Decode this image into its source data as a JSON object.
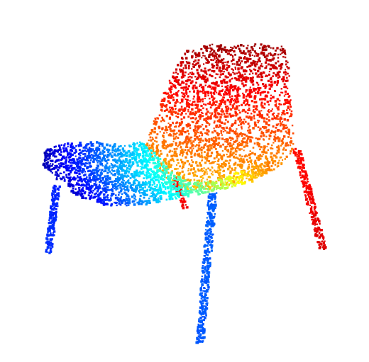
{
  "scene": {
    "subject": "chair-point-cloud",
    "background_color": "#ffffff",
    "colormap": "jet",
    "colormap_stops": [
      "#00007f",
      "#0000ff",
      "#007fff",
      "#00ffff",
      "#7fff7f",
      "#ffff00",
      "#ff7f00",
      "#ff0000",
      "#7f0000"
    ],
    "parts": [
      "seat-back",
      "seat-pan",
      "front-left-leg",
      "front-right-leg",
      "back-left-leg",
      "back-right-leg"
    ]
  }
}
